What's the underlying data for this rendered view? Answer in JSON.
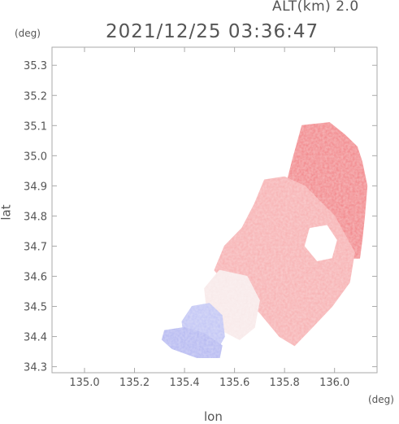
{
  "header": {
    "altitude_label": "ALT(km) 2.0",
    "timestamp": "2021/12/25 03:36:47"
  },
  "chart_data": {
    "type": "heatmap",
    "title": "2021/12/25 03:36:47",
    "subtitle": "ALT(km) 2.0",
    "xlabel": "lon",
    "ylabel": "lat",
    "x_unit": "(deg)",
    "y_unit": "(deg)",
    "xlim": [
      134.87,
      136.17
    ],
    "ylim": [
      34.28,
      35.36
    ],
    "x_ticks": [
      "135.0",
      "135.2",
      "135.4",
      "135.6",
      "135.8",
      "136.0"
    ],
    "y_ticks": [
      "34.3",
      "34.4",
      "34.5",
      "34.6",
      "34.7",
      "34.8",
      "34.9",
      "35.0",
      "35.1",
      "35.2",
      "35.3"
    ],
    "grid": false,
    "legend": "none",
    "colors": {
      "positive": "#f06a6e",
      "neutral": "#f8e8e8",
      "negative": "#7f86e8",
      "frame": "#aaaaaa"
    },
    "echo_regions": [
      {
        "name": "main-echo-ne",
        "sign": "positive",
        "intensity": 0.85,
        "polygon": [
          [
            135.87,
            35.1
          ],
          [
            135.98,
            35.11
          ],
          [
            136.04,
            35.07
          ],
          [
            136.09,
            35.03
          ],
          [
            136.11,
            34.98
          ],
          [
            136.13,
            34.9
          ],
          [
            136.12,
            34.8
          ],
          [
            136.11,
            34.72
          ],
          [
            136.1,
            34.66
          ],
          [
            135.99,
            34.66
          ],
          [
            135.93,
            34.72
          ],
          [
            135.85,
            34.78
          ],
          [
            135.8,
            34.88
          ],
          [
            135.83,
            34.98
          ]
        ]
      },
      {
        "name": "main-echo-central",
        "sign": "positive",
        "intensity": 0.55,
        "polygon": [
          [
            135.72,
            34.92
          ],
          [
            135.8,
            34.93
          ],
          [
            135.88,
            34.9
          ],
          [
            136.0,
            34.8
          ],
          [
            136.08,
            34.68
          ],
          [
            136.06,
            34.58
          ],
          [
            135.99,
            34.5
          ],
          [
            135.91,
            34.43
          ],
          [
            135.84,
            34.37
          ],
          [
            135.78,
            34.4
          ],
          [
            135.7,
            34.48
          ],
          [
            135.58,
            34.56
          ],
          [
            135.52,
            34.62
          ],
          [
            135.56,
            34.7
          ],
          [
            135.63,
            34.76
          ],
          [
            135.68,
            34.84
          ]
        ]
      },
      {
        "name": "west-weak-echo",
        "sign": "neutral",
        "intensity": 0.25,
        "polygon": [
          [
            135.54,
            34.62
          ],
          [
            135.65,
            34.6
          ],
          [
            135.7,
            34.52
          ],
          [
            135.68,
            34.43
          ],
          [
            135.62,
            34.39
          ],
          [
            135.55,
            34.42
          ],
          [
            135.49,
            34.48
          ],
          [
            135.48,
            34.56
          ]
        ]
      },
      {
        "name": "sw-negative-echo",
        "sign": "negative",
        "intensity": 0.5,
        "polygon": [
          [
            135.43,
            34.5
          ],
          [
            135.5,
            34.51
          ],
          [
            135.55,
            34.47
          ],
          [
            135.56,
            34.4
          ],
          [
            135.52,
            34.34
          ],
          [
            135.44,
            34.35
          ],
          [
            135.4,
            34.39
          ],
          [
            135.39,
            34.45
          ]
        ]
      },
      {
        "name": "sw-negative-tail",
        "sign": "negative",
        "intensity": 0.6,
        "polygon": [
          [
            135.32,
            34.42
          ],
          [
            135.4,
            34.43
          ],
          [
            135.48,
            34.41
          ],
          [
            135.55,
            34.37
          ],
          [
            135.54,
            34.33
          ],
          [
            135.45,
            34.33
          ],
          [
            135.35,
            34.36
          ],
          [
            135.31,
            34.39
          ]
        ]
      },
      {
        "name": "clear-hole",
        "sign": "none",
        "intensity": 0,
        "polygon": [
          [
            135.9,
            34.76
          ],
          [
            135.97,
            34.77
          ],
          [
            136.01,
            34.72
          ],
          [
            135.99,
            34.66
          ],
          [
            135.93,
            34.65
          ],
          [
            135.88,
            34.7
          ]
        ]
      }
    ]
  }
}
